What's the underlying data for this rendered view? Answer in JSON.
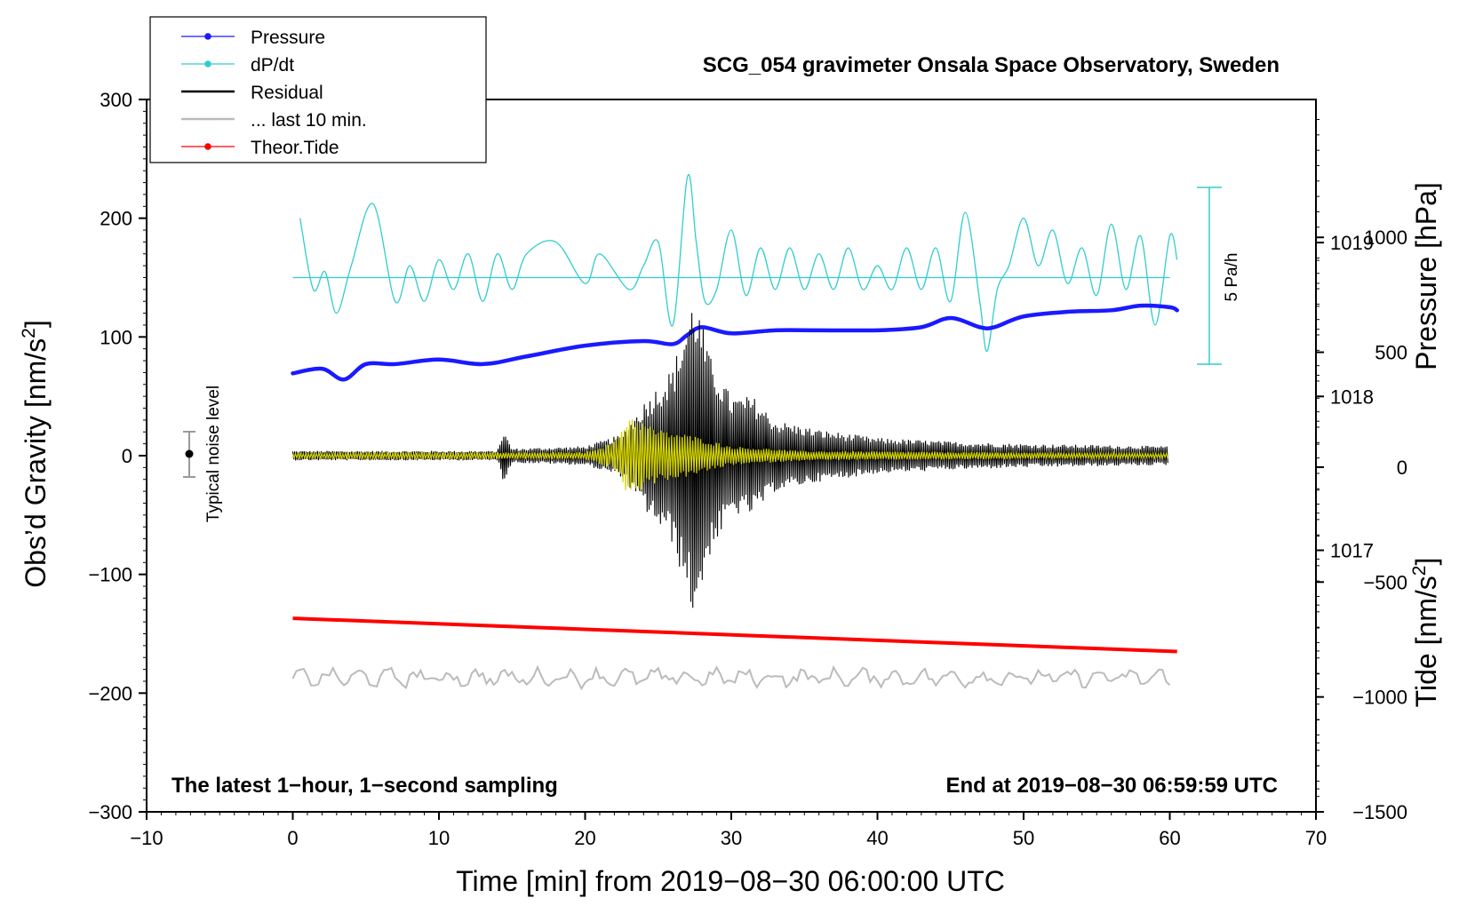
{
  "chart_data": {
    "type": "line",
    "title": "SCG_054 gravimeter Onsala Space Observatory, Sweden",
    "xlabel": "Time [min] from 2019−08−30 06:00:00 UTC",
    "ylabel_prefix": "Obs’d Gravity [nm/s",
    "ylabel_sup": "2",
    "ylabel_suffix": "]",
    "xlim": [
      -10,
      70
    ],
    "ylim": [
      -300,
      300
    ],
    "x_ticks": [
      "−10",
      "0",
      "10",
      "20",
      "30",
      "40",
      "50",
      "60",
      "70"
    ],
    "y_ticks": [
      "−300",
      "−200",
      "−100",
      "0",
      "100",
      "200",
      "300"
    ],
    "pressure_axis": {
      "label": "Pressure [hPa]",
      "range": [
        1015.3,
        1019.93
      ],
      "ticks": [
        "1017",
        "1018",
        "1019"
      ]
    },
    "tide_axis": {
      "label_prefix": "Tide [nm/s",
      "label_sup": "2",
      "label_suffix": "]",
      "range": [
        -1500,
        1600
      ],
      "ticks": [
        "1000",
        "500",
        "0",
        "−500",
        "−1000",
        "−1500"
      ]
    },
    "legend": [
      {
        "name": "Pressure",
        "color": "#1a1aff",
        "marker": true
      },
      {
        "name": "dP/dt",
        "color": "#33cccc",
        "marker": true
      },
      {
        "name": "Residual",
        "color": "#000000",
        "marker": false
      },
      {
        "name": "... last 10 min.",
        "color": "#bbbbbb",
        "marker": false
      },
      {
        "name": "Theor.Tide",
        "color": "#ff0000",
        "marker": true
      }
    ],
    "series": {
      "pressure": {
        "name": "Pressure",
        "unit": "hPa",
        "x": [
          0,
          2,
          3.5,
          5,
          7,
          10,
          13,
          16,
          20,
          24,
          26,
          27,
          28,
          30,
          33,
          36,
          40,
          43,
          45,
          47,
          48,
          50,
          53,
          56,
          58,
          60,
          60.5
        ],
        "y": [
          1018.15,
          1018.18,
          1018.11,
          1018.21,
          1018.21,
          1018.24,
          1018.21,
          1018.26,
          1018.33,
          1018.36,
          1018.34,
          1018.4,
          1018.45,
          1018.41,
          1018.43,
          1018.43,
          1018.43,
          1018.45,
          1018.51,
          1018.45,
          1018.45,
          1018.52,
          1018.55,
          1018.56,
          1018.59,
          1018.58,
          1018.56
        ]
      },
      "dpdt": {
        "name": "dP/dt",
        "baseline_y": 150,
        "scale_label": "5 Pa/h",
        "x": [
          0.5,
          1.4,
          2.2,
          3.0,
          4.0,
          5.5,
          7.0,
          8.0,
          9.0,
          10.0,
          11.0,
          12.0,
          13.0,
          14.0,
          15.0,
          16.0,
          18.0,
          20.0,
          21.0,
          23.0,
          24.0,
          25.0,
          26.0,
          27.0,
          27.6,
          28.2,
          29.0,
          30.0,
          31.0,
          32.0,
          33.0,
          34.0,
          35.0,
          36.0,
          37.0,
          38.0,
          39.0,
          40.0,
          41.0,
          42.0,
          43.0,
          44.0,
          45.0,
          46.0,
          47.0,
          47.5,
          48.2,
          49.0,
          50.0,
          51.0,
          52.0,
          53.0,
          54.0,
          55.0,
          56.0,
          57.0,
          58.0,
          59.0,
          60.0,
          60.5
        ],
        "y": [
          200,
          140,
          155,
          120,
          160,
          212,
          130,
          160,
          130,
          165,
          140,
          170,
          130,
          170,
          140,
          170,
          180,
          145,
          170,
          140,
          160,
          180,
          110,
          235,
          180,
          130,
          140,
          190,
          135,
          175,
          140,
          175,
          140,
          170,
          140,
          175,
          140,
          160,
          140,
          175,
          140,
          175,
          130,
          205,
          130,
          88,
          140,
          160,
          200,
          160,
          190,
          145,
          175,
          135,
          195,
          140,
          185,
          110,
          185,
          165
        ]
      },
      "residual": {
        "name": "Residual",
        "envelope": [
          {
            "x": 0,
            "amp": 4
          },
          {
            "x": 14,
            "amp": 4
          },
          {
            "x": 14.4,
            "amp": 22
          },
          {
            "x": 15,
            "amp": 6
          },
          {
            "x": 20,
            "amp": 8
          },
          {
            "x": 22.5,
            "amp": 18
          },
          {
            "x": 24,
            "amp": 45
          },
          {
            "x": 26,
            "amp": 75
          },
          {
            "x": 27.5,
            "amp": 140
          },
          {
            "x": 28.5,
            "amp": 85
          },
          {
            "x": 30,
            "amp": 50
          },
          {
            "x": 31.5,
            "amp": 50
          },
          {
            "x": 33,
            "amp": 30
          },
          {
            "x": 36,
            "amp": 22
          },
          {
            "x": 40,
            "amp": 15
          },
          {
            "x": 45,
            "amp": 12
          },
          {
            "x": 50,
            "amp": 10
          },
          {
            "x": 60,
            "amp": 8
          }
        ]
      },
      "residual_filtered": {
        "name": "yellow filtered residual",
        "envelope": [
          {
            "x": 0,
            "amp": 2
          },
          {
            "x": 20,
            "amp": 3
          },
          {
            "x": 22,
            "amp": 12
          },
          {
            "x": 23,
            "amp": 35
          },
          {
            "x": 25,
            "amp": 22
          },
          {
            "x": 27,
            "amp": 18
          },
          {
            "x": 30,
            "amp": 8
          },
          {
            "x": 35,
            "amp": 4
          },
          {
            "x": 60,
            "amp": 2
          }
        ]
      },
      "last_10_min": {
        "name": "... last 10 min.",
        "baseline_y": -187,
        "amp": 8,
        "x_range": [
          0,
          60
        ]
      },
      "theor_tide": {
        "name": "Theor.Tide",
        "x": [
          0,
          60.5
        ],
        "y": [
          -137,
          -165
        ]
      }
    },
    "noise_marker": {
      "label": "Typical noise level",
      "x": -7,
      "y": 0,
      "err": 20
    },
    "annotations": {
      "bottom_left": "The latest 1−hour, 1−second sampling",
      "bottom_right": "End at 2019−08−30 06:59:59 UTC"
    }
  }
}
